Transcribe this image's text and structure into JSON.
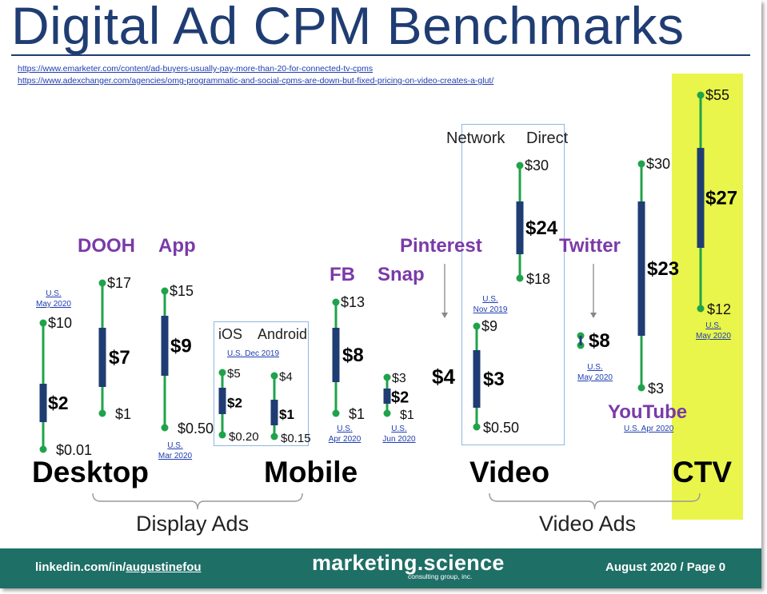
{
  "title": "Digital Ad CPM Benchmarks",
  "sources": [
    "https://www.emarketer.com/content/ad-buyers-usually-pay-more-than-20-for-connected-tv-cpms",
    "https://www.adexchanger.com/agencies/omg-programmatic-and-social-cpms-are-down-but-fixed-pricing-on-video-creates-a-glut/"
  ],
  "notes": {
    "desktop": [
      "U.S.",
      "May 2020"
    ],
    "app": [
      "U.S.",
      "Mar 2020"
    ],
    "mobile_box": "U.S. Dec 2019",
    "fb": [
      "U.S.",
      "Apr 2020"
    ],
    "snap": [
      "U.S.",
      "Jun 2020"
    ],
    "video": [
      "U.S.",
      "Nov 2019"
    ],
    "twitter": [
      "U.S.",
      "May 2020"
    ],
    "youtube": "U.S. Apr 2020",
    "ctv": [
      "U.S.",
      "May 2020"
    ]
  },
  "labels": {
    "dooh": "DOOH",
    "app": "App",
    "ios": "iOS",
    "android": "Android",
    "fb": "FB",
    "snap": "Snap",
    "pinterest": "Pinterest",
    "network": "Network",
    "direct": "Direct",
    "twitter": "Twitter",
    "youtube": "YouTube",
    "pinterest_value": "$4"
  },
  "categories": {
    "desktop": "Desktop",
    "mobile": "Mobile",
    "video": "Video",
    "ctv": "CTV"
  },
  "groups": {
    "display": "Display Ads",
    "video": "Video Ads"
  },
  "footer": {
    "left_prefix": "linkedin.com/in/",
    "left_link": "augustinefou",
    "brand": "marketing.science",
    "brand_sub": "consulting group, inc.",
    "right": "August 2020 / Page 0"
  },
  "colors": {
    "title": "#1f3d73",
    "range_line": "#1fa34a",
    "median_bar": "#1f3d73",
    "label_purple": "#7a3aa8",
    "ctv_highlight": "#e9f54a",
    "footer_bg": "#1e6f66"
  },
  "chart_data": {
    "type": "range",
    "title": "Digital Ad CPM Benchmarks",
    "unit": "USD CPM",
    "series": [
      {
        "name": "Desktop",
        "low": "$0.01",
        "high": "$10",
        "median": "$2"
      },
      {
        "name": "DOOH",
        "low": "$1",
        "high": "$17",
        "median": "$7"
      },
      {
        "name": "App",
        "low": "$0.50",
        "high": "$15",
        "median": "$9"
      },
      {
        "name": "iOS",
        "low": "$0.20",
        "high": "$5",
        "median": "$2"
      },
      {
        "name": "Android",
        "low": "$0.15",
        "high": "$4",
        "median": "$1"
      },
      {
        "name": "FB",
        "low": "$1",
        "high": "$13",
        "median": "$8"
      },
      {
        "name": "Snap",
        "low": "$1",
        "high": "$3",
        "median": "$2"
      },
      {
        "name": "Pinterest",
        "median": "$4"
      },
      {
        "name": "Network",
        "low": "$0.50",
        "high": "$9",
        "median": "$3"
      },
      {
        "name": "Direct",
        "low": "$18",
        "high": "$30",
        "median": "$24"
      },
      {
        "name": "Twitter",
        "median": "$8"
      },
      {
        "name": "YouTube",
        "low": "$3",
        "high": "$30",
        "median": "$23"
      },
      {
        "name": "CTV",
        "low": "$12",
        "high": "$55",
        "median": "$27"
      }
    ]
  }
}
